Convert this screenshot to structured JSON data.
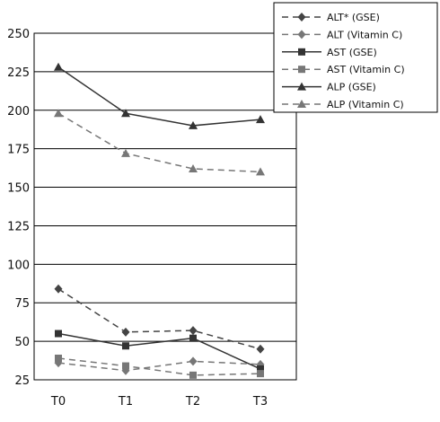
{
  "chart_data": {
    "type": "line",
    "categories": [
      "T0",
      "T1",
      "T2",
      "T3"
    ],
    "ylim": [
      25,
      250
    ],
    "yticks": [
      25,
      50,
      75,
      100,
      125,
      150,
      175,
      200,
      225,
      250
    ],
    "grid": true,
    "legend_position": "top-right",
    "series": [
      {
        "name": "ALT* (GSE)",
        "values": [
          84,
          56,
          57,
          45
        ],
        "marker": "diamond",
        "dash": "dashed",
        "color": "#444444"
      },
      {
        "name": "ALT (Vitamin C)",
        "values": [
          36,
          31,
          37,
          35
        ],
        "marker": "diamond",
        "dash": "dashed",
        "color": "#777777"
      },
      {
        "name": "AST (GSE)",
        "values": [
          55,
          47,
          52,
          32
        ],
        "marker": "square",
        "dash": "solid",
        "color": "#333333"
      },
      {
        "name": "AST (Vitamin C)",
        "values": [
          39,
          34,
          28,
          29
        ],
        "marker": "square",
        "dash": "dashed",
        "color": "#777777"
      },
      {
        "name": "ALP (GSE)",
        "values": [
          228,
          198,
          190,
          194
        ],
        "marker": "triangle",
        "dash": "solid",
        "color": "#333333"
      },
      {
        "name": "ALP (Vitamin C)",
        "values": [
          198,
          172,
          162,
          160
        ],
        "marker": "triangle",
        "dash": "dashed",
        "color": "#777777"
      }
    ]
  }
}
